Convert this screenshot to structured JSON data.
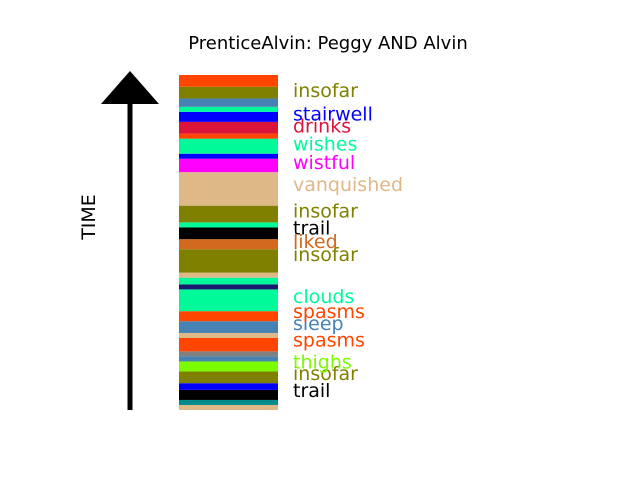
{
  "chart_data": {
    "type": "bar",
    "title": "PrenticeAlvin: Peggy AND Alvin",
    "ylabel": "TIME",
    "orientation": "stacked-vertical-timeline",
    "ylim": [
      0,
      100
    ],
    "segments": [
      {
        "start": 0.0,
        "end": 1.5,
        "color": "#deb887"
      },
      {
        "start": 1.5,
        "end": 3.0,
        "color": "#008b8b"
      },
      {
        "start": 3.0,
        "end": 6.0,
        "color": "#000000"
      },
      {
        "start": 6.0,
        "end": 8.0,
        "color": "#0000ff"
      },
      {
        "start": 8.0,
        "end": 11.5,
        "color": "#808000"
      },
      {
        "start": 11.5,
        "end": 14.5,
        "color": "#7cfc00"
      },
      {
        "start": 14.5,
        "end": 16.0,
        "color": "#4682b4"
      },
      {
        "start": 16.0,
        "end": 17.5,
        "color": "#808080"
      },
      {
        "start": 17.5,
        "end": 18.5,
        "color": "#ff4500"
      },
      {
        "start": 18.5,
        "end": 21.5,
        "color": "#ff4500"
      },
      {
        "start": 21.5,
        "end": 23.0,
        "color": "#deb887"
      },
      {
        "start": 23.0,
        "end": 26.5,
        "color": "#4682b4"
      },
      {
        "start": 26.5,
        "end": 29.5,
        "color": "#ff4500"
      },
      {
        "start": 29.5,
        "end": 36.0,
        "color": "#00fa9a"
      },
      {
        "start": 36.0,
        "end": 37.5,
        "color": "#191970"
      },
      {
        "start": 37.5,
        "end": 39.5,
        "color": "#00fa9a"
      },
      {
        "start": 39.5,
        "end": 41.0,
        "color": "#deb887"
      },
      {
        "start": 41.0,
        "end": 48.0,
        "color": "#808000"
      },
      {
        "start": 48.0,
        "end": 51.0,
        "color": "#d2691e"
      },
      {
        "start": 51.0,
        "end": 54.5,
        "color": "#000000"
      },
      {
        "start": 54.5,
        "end": 56.0,
        "color": "#00fa9a"
      },
      {
        "start": 56.0,
        "end": 61.0,
        "color": "#808000"
      },
      {
        "start": 61.0,
        "end": 71.0,
        "color": "#deb887"
      },
      {
        "start": 71.0,
        "end": 75.0,
        "color": "#ff00ff"
      },
      {
        "start": 75.0,
        "end": 76.5,
        "color": "#0000ff"
      },
      {
        "start": 76.5,
        "end": 81.0,
        "color": "#00fa9a"
      },
      {
        "start": 81.0,
        "end": 82.5,
        "color": "#ff4500"
      },
      {
        "start": 82.5,
        "end": 86.0,
        "color": "#dc143c"
      },
      {
        "start": 86.0,
        "end": 89.0,
        "color": "#0000ff"
      },
      {
        "start": 89.0,
        "end": 90.5,
        "color": "#00fa9a"
      },
      {
        "start": 90.5,
        "end": 93.0,
        "color": "#4682b4"
      },
      {
        "start": 93.0,
        "end": 96.5,
        "color": "#808000"
      },
      {
        "start": 96.5,
        "end": 100.0,
        "color": "#ff4500"
      }
    ],
    "labels": [
      {
        "text": "trail",
        "at": 6.0,
        "color": "#000000"
      },
      {
        "text": "insofar",
        "at": 11.0,
        "color": "#808000"
      },
      {
        "text": "thighs",
        "at": 14.5,
        "color": "#7cfc00"
      },
      {
        "text": "spasms",
        "at": 21.0,
        "color": "#ff4500"
      },
      {
        "text": "sleep",
        "at": 26.0,
        "color": "#4682b4"
      },
      {
        "text": "spasms",
        "at": 29.5,
        "color": "#ff4500"
      },
      {
        "text": "clouds",
        "at": 34.0,
        "color": "#00fa9a"
      },
      {
        "text": "insofar",
        "at": 46.5,
        "color": "#808000"
      },
      {
        "text": "liked",
        "at": 50.5,
        "color": "#d2691e"
      },
      {
        "text": "trail",
        "at": 54.5,
        "color": "#000000"
      },
      {
        "text": "insofar",
        "at": 59.5,
        "color": "#808000"
      },
      {
        "text": "vanquished",
        "at": 67.5,
        "color": "#deb887"
      },
      {
        "text": "wistful",
        "at": 74.0,
        "color": "#ff00ff"
      },
      {
        "text": "wishes",
        "at": 79.5,
        "color": "#00fa9a"
      },
      {
        "text": "drinks",
        "at": 85.0,
        "color": "#dc143c"
      },
      {
        "text": "stairwell",
        "at": 88.5,
        "color": "#0000ff"
      },
      {
        "text": "insofar",
        "at": 95.5,
        "color": "#808000"
      }
    ]
  }
}
